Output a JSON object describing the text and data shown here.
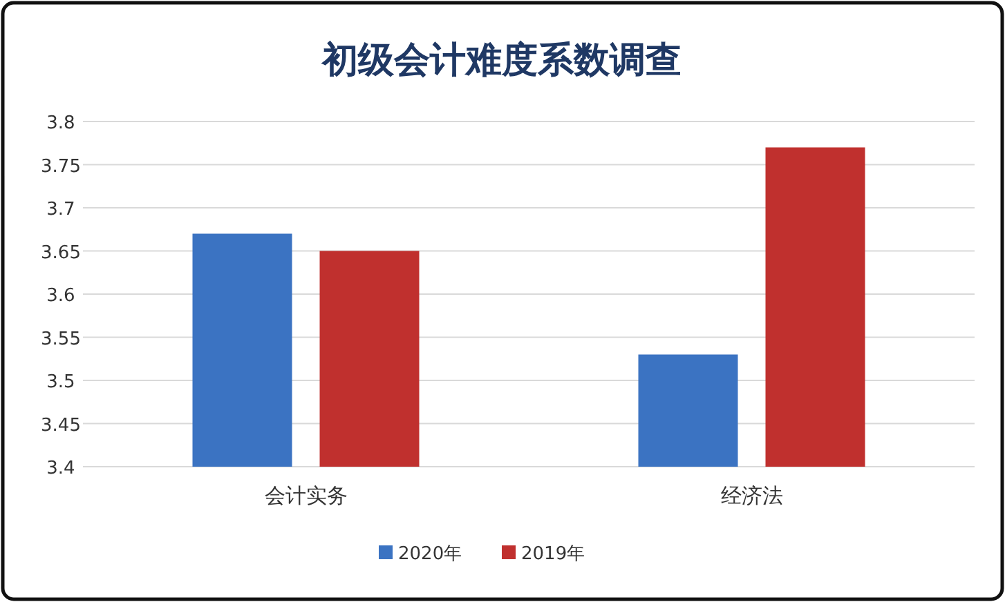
{
  "chart_data": {
    "type": "bar",
    "title": "初级会计难度系数调查",
    "categories": [
      "会计实务",
      "经济法"
    ],
    "series": [
      {
        "name": "2020年",
        "color": "#3b73c2",
        "values": [
          3.67,
          3.53
        ]
      },
      {
        "name": "2019年",
        "color": "#c0302e",
        "values": [
          3.65,
          3.77
        ]
      }
    ],
    "ylim": [
      3.4,
      3.8
    ],
    "yticks": [
      3.4,
      3.45,
      3.5,
      3.55,
      3.6,
      3.65,
      3.7,
      3.75,
      3.8
    ],
    "grid": "y",
    "legend": "bottom"
  }
}
